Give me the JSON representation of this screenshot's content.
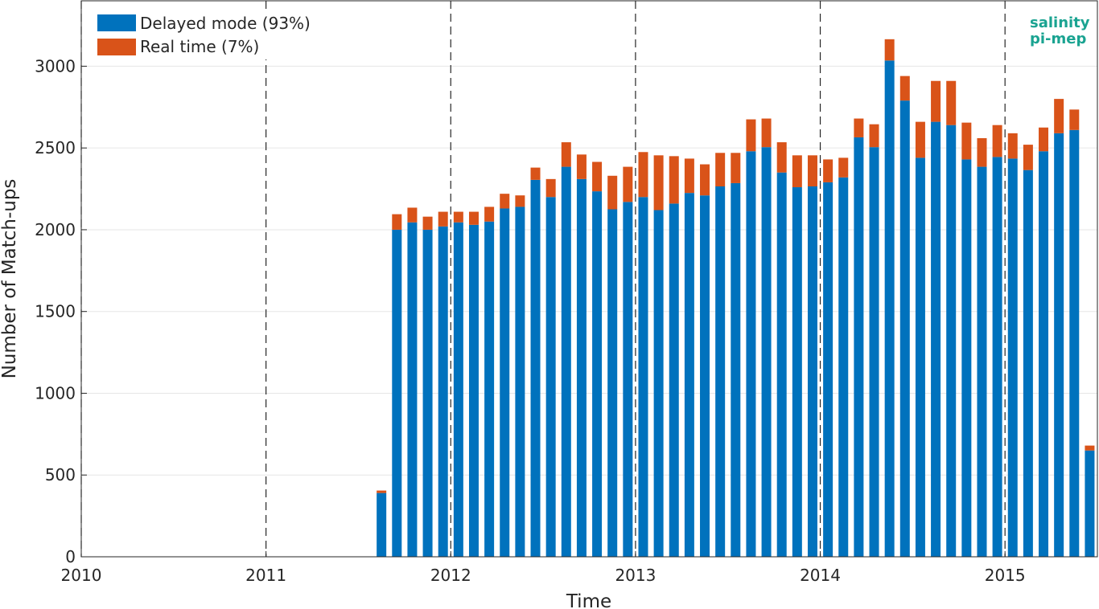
{
  "chart_data": {
    "type": "bar",
    "stacked": true,
    "xlabel": "Time",
    "ylabel": "Number of Match-ups",
    "xlim": [
      "2010-01",
      "2015-07"
    ],
    "ylim": [
      0,
      3400
    ],
    "x_ticks": [
      "2010",
      "2011",
      "2012",
      "2013",
      "2014",
      "2015"
    ],
    "y_ticks": [
      0,
      500,
      1000,
      1500,
      2000,
      2500,
      3000
    ],
    "year_divider_lines": [
      "2010",
      "2011",
      "2012",
      "2013",
      "2014",
      "2015"
    ],
    "grid": "horizontal",
    "legend_position": "top-left",
    "x": [
      "2011-08",
      "2011-09",
      "2011-10",
      "2011-11",
      "2011-12",
      "2012-01",
      "2012-02",
      "2012-03",
      "2012-04",
      "2012-05",
      "2012-06",
      "2012-07",
      "2012-08",
      "2012-09",
      "2012-10",
      "2012-11",
      "2012-12",
      "2013-01",
      "2013-02",
      "2013-03",
      "2013-04",
      "2013-05",
      "2013-06",
      "2013-07",
      "2013-08",
      "2013-09",
      "2013-10",
      "2013-11",
      "2013-12",
      "2014-01",
      "2014-02",
      "2014-03",
      "2014-04",
      "2014-05",
      "2014-06",
      "2014-07",
      "2014-08",
      "2014-09",
      "2014-10",
      "2014-11",
      "2014-12",
      "2015-01",
      "2015-02",
      "2015-03",
      "2015-04",
      "2015-05",
      "2015-06"
    ],
    "series": [
      {
        "name": "Delayed mode (93%)",
        "color": "#0072BD",
        "values": [
          390,
          2000,
          2045,
          2000,
          2020,
          2045,
          2030,
          2050,
          2130,
          2140,
          2305,
          2200,
          2385,
          2310,
          2235,
          2125,
          2170,
          2200,
          2120,
          2160,
          2225,
          2210,
          2265,
          2285,
          2480,
          2505,
          2350,
          2260,
          2265,
          2290,
          2320,
          2565,
          2505,
          3035,
          2790,
          2440,
          2660,
          2640,
          2430,
          2385,
          2445,
          2435,
          2365,
          2480,
          2590,
          2610,
          650
        ]
      },
      {
        "name": "Real time (7%)",
        "color": "#D95319",
        "values": [
          15,
          95,
          90,
          80,
          90,
          65,
          80,
          90,
          90,
          70,
          75,
          110,
          150,
          150,
          180,
          205,
          215,
          275,
          335,
          290,
          210,
          190,
          205,
          185,
          195,
          175,
          185,
          195,
          190,
          140,
          120,
          115,
          140,
          130,
          150,
          220,
          250,
          270,
          225,
          175,
          195,
          155,
          155,
          145,
          210,
          125,
          30
        ]
      }
    ]
  },
  "logo": {
    "line1": "salinity",
    "line2": "pi-mep"
  }
}
